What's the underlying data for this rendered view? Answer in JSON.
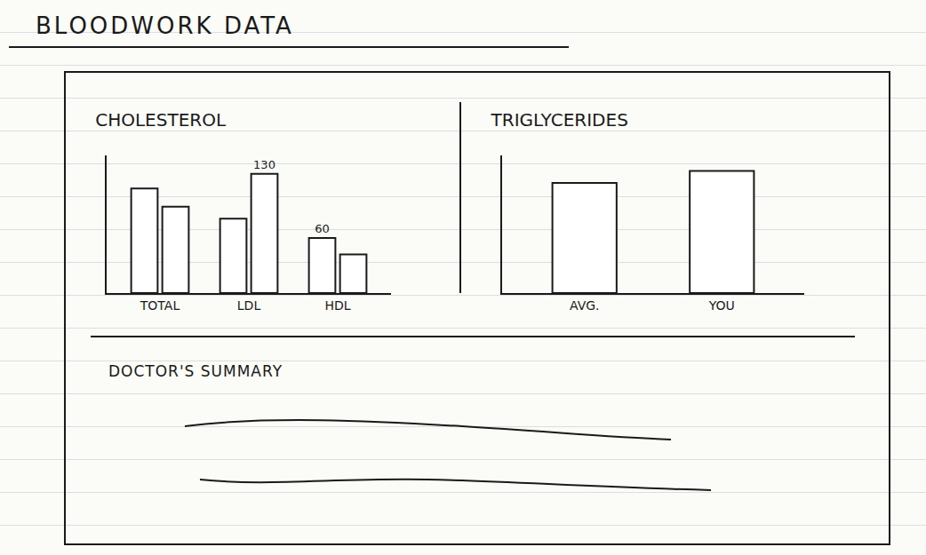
{
  "title": "BLOODWORK DATA",
  "chart_data": [
    {
      "type": "bar",
      "title": "CHOLESTEROL",
      "categories": [
        "TOTAL",
        "LDL",
        "HDL"
      ],
      "series": [
        {
          "color": "#1a1a1a",
          "values": [
            114,
            81,
            60
          ],
          "value_labels": [
            null,
            null,
            "60"
          ]
        },
        {
          "color": "#1a1a1a",
          "values": [
            94,
            130,
            42
          ],
          "value_labels": [
            null,
            "130",
            null
          ]
        }
      ],
      "ylim": [
        0,
        150
      ],
      "data_labels": true,
      "tick_labels": "x",
      "grid": false
    },
    {
      "type": "bar",
      "title": "TRIGLYCERIDES",
      "categories": [
        "AVG.",
        "YOU"
      ],
      "values": [
        120,
        133
      ],
      "color": "#1a1a1a",
      "ylim": [
        0,
        150
      ],
      "data_labels": false,
      "tick_labels": "x",
      "grid": false
    }
  ],
  "summary": {
    "heading": "DOCTOR'S SUMMARY"
  }
}
